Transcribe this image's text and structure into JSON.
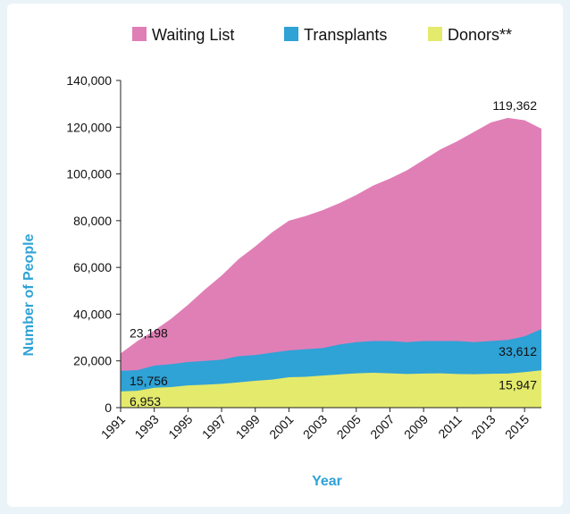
{
  "chart_data": {
    "type": "area",
    "stacked": false,
    "title": "",
    "xlabel": "Year",
    "ylabel": "Number of People",
    "xlim": [
      1991,
      2016
    ],
    "ylim": [
      0,
      140000
    ],
    "yticks": [
      0,
      20000,
      40000,
      60000,
      80000,
      100000,
      120000,
      140000
    ],
    "ytick_labels": [
      "0",
      "20,000",
      "40,000",
      "60,000",
      "80,000",
      "100,000",
      "120,000",
      "140,000"
    ],
    "xticks": [
      1991,
      1993,
      1995,
      1997,
      1999,
      2001,
      2003,
      2005,
      2007,
      2009,
      2011,
      2013,
      2015
    ],
    "xtick_labels": [
      "1991",
      "1993",
      "1995",
      "1997",
      "1999",
      "2001",
      "2003",
      "2005",
      "2007",
      "2009",
      "2011",
      "2013",
      "2015"
    ],
    "grid": false,
    "legend_position": "top",
    "x": [
      1991,
      1992,
      1993,
      1994,
      1995,
      1996,
      1997,
      1998,
      1999,
      2000,
      2001,
      2002,
      2003,
      2004,
      2005,
      2006,
      2007,
      2008,
      2009,
      2010,
      2011,
      2012,
      2013,
      2014,
      2015,
      2016
    ],
    "series": [
      {
        "name": "Waiting List",
        "color": "#e07fb6",
        "values": [
          23198,
          28500,
          33000,
          38000,
          44000,
          50500,
          56500,
          63500,
          69000,
          75000,
          80000,
          82000,
          84500,
          87500,
          91000,
          95000,
          98000,
          101500,
          106000,
          110500,
          114000,
          118000,
          122000,
          124000,
          123000,
          119362
        ]
      },
      {
        "name": "Transplants",
        "color": "#2fa2d6",
        "values": [
          15756,
          16000,
          18000,
          18600,
          19500,
          20000,
          20500,
          22000,
          22500,
          23500,
          24500,
          25000,
          25500,
          27000,
          28000,
          28500,
          28500,
          28000,
          28500,
          28500,
          28500,
          28000,
          28500,
          29000,
          30500,
          33612
        ]
      },
      {
        "name": "Donors**",
        "color": "#e4ea6c",
        "values": [
          6953,
          7200,
          8500,
          8800,
          9500,
          9800,
          10200,
          10800,
          11500,
          12000,
          13000,
          13200,
          13700,
          14200,
          14700,
          14900,
          14700,
          14400,
          14600,
          14700,
          14400,
          14300,
          14500,
          14600,
          15200,
          15947
        ]
      }
    ],
    "annotations": [
      {
        "text": "23,198",
        "x": 1991,
        "y": 23198,
        "series": "Waiting List"
      },
      {
        "text": "15,756",
        "x": 1991,
        "y": 15756,
        "series": "Transplants"
      },
      {
        "text": "6,953",
        "x": 1991,
        "y": 6953,
        "series": "Donors**"
      },
      {
        "text": "119,362",
        "x": 2016,
        "y": 119362,
        "series": "Waiting List"
      },
      {
        "text": "33,612",
        "x": 2016,
        "y": 33612,
        "series": "Transplants"
      },
      {
        "text": "15,947",
        "x": 2016,
        "y": 15947,
        "series": "Donors**"
      }
    ]
  }
}
